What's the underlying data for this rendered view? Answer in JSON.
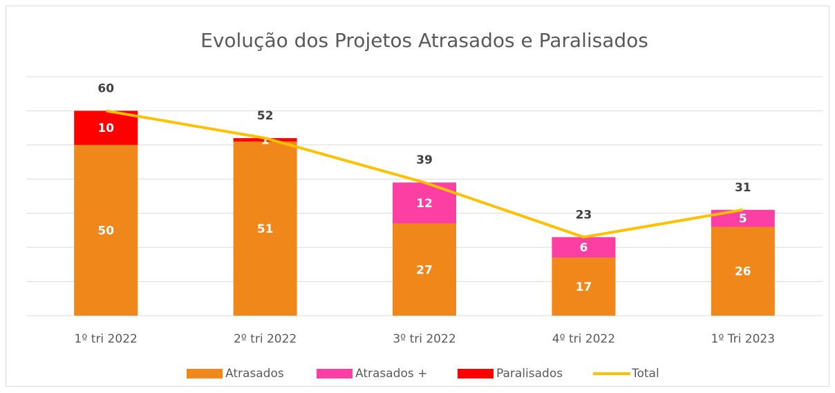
{
  "chart_data": {
    "type": "stacked-bar-line",
    "title": "Evolução dos Projetos Atrasados e Paralisados",
    "categories": [
      "1º tri 2022",
      "2º tri 2022",
      "3º tri 2022",
      "4º tri 2022",
      "1º Tri 2023"
    ],
    "series": [
      {
        "name": "Atrasados",
        "color": "#f0871a",
        "type": "bar",
        "values": [
          50,
          51,
          27,
          17,
          26
        ]
      },
      {
        "name": "Atrasados +",
        "color": "#fb3fa3",
        "type": "bar",
        "values": [
          null,
          null,
          12,
          6,
          5
        ]
      },
      {
        "name": "Paralisados",
        "color": "#ff0000",
        "type": "bar",
        "values": [
          10,
          1,
          null,
          null,
          null
        ]
      },
      {
        "name": "Total",
        "color": "#ffc000",
        "type": "line",
        "values": [
          60,
          52,
          39,
          23,
          31
        ]
      }
    ],
    "ylim": [
      0,
      70
    ],
    "yticks": [
      0,
      10,
      20,
      30,
      40,
      50,
      60,
      70
    ],
    "grid": true,
    "legend": "bottom"
  }
}
